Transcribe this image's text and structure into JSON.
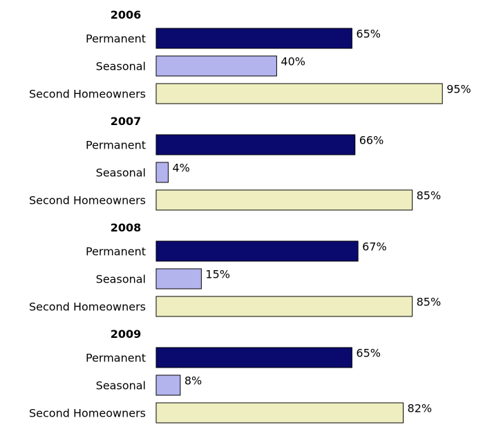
{
  "chart_data": {
    "type": "bar",
    "orientation": "horizontal",
    "groups": [
      {
        "title": "2006",
        "bars": [
          {
            "category": "Permanent",
            "value": 65,
            "label": "65%"
          },
          {
            "category": "Seasonal",
            "value": 40,
            "label": "40%"
          },
          {
            "category": "Second Homeowners",
            "value": 95,
            "label": "95%"
          }
        ]
      },
      {
        "title": "2007",
        "bars": [
          {
            "category": "Permanent",
            "value": 66,
            "label": "66%"
          },
          {
            "category": "Seasonal",
            "value": 4,
            "label": "4%"
          },
          {
            "category": "Second Homeowners",
            "value": 85,
            "label": "85%"
          }
        ]
      },
      {
        "title": "2008",
        "bars": [
          {
            "category": "Permanent",
            "value": 67,
            "label": "67%"
          },
          {
            "category": "Seasonal",
            "value": 15,
            "label": "15%"
          },
          {
            "category": "Second Homeowners",
            "value": 85,
            "label": "85%"
          }
        ]
      },
      {
        "title": "2009",
        "bars": [
          {
            "category": "Permanent",
            "value": 65,
            "label": "65%"
          },
          {
            "category": "Seasonal",
            "value": 8,
            "label": "8%"
          },
          {
            "category": "Second Homeowners",
            "value": 82,
            "label": "82%"
          }
        ]
      }
    ],
    "xlim": [
      0,
      100
    ],
    "grid": false,
    "legend": "none",
    "colors": {
      "Permanent": "#0a0a6e",
      "Seasonal": "#b3b3ee",
      "Second Homeowners": "#eeeec0"
    }
  }
}
